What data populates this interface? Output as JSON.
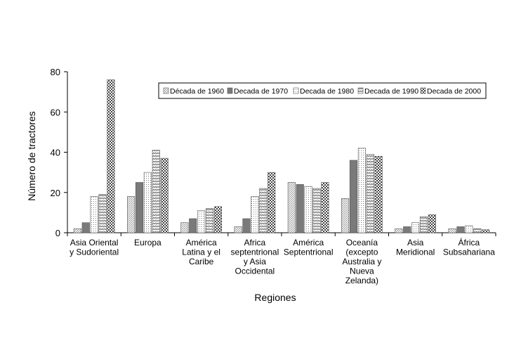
{
  "chart_data": {
    "type": "bar",
    "xlabel": "Regiones",
    "ylabel": "Número de tractores",
    "ylim": [
      0,
      80
    ],
    "yticks": [
      0,
      20,
      40,
      60,
      80
    ],
    "legend_position": "top-right",
    "categories": [
      [
        "Asia Oriental",
        "y Sudoriental"
      ],
      [
        "Europa"
      ],
      [
        "América",
        "Latina y el",
        "Caribe"
      ],
      [
        "Africa",
        "septentrional",
        "y Asia",
        "Occidental"
      ],
      [
        "América",
        "Septentrional"
      ],
      [
        "Oceanía",
        "(excepto",
        "Australia y",
        "Nueva",
        "Zelanda)"
      ],
      [
        "Asia",
        "Meridional"
      ],
      [
        "África",
        "Subsahariana"
      ]
    ],
    "series": [
      {
        "name": "Década de 1960",
        "pattern": "diag-light",
        "values": [
          2,
          18,
          5,
          3,
          25,
          17,
          2,
          2
        ]
      },
      {
        "name": "Decada de 1970",
        "pattern": "solid-gray",
        "values": [
          5,
          25,
          7,
          7,
          24,
          36,
          3,
          3
        ]
      },
      {
        "name": "Decada de 1980",
        "pattern": "dots",
        "values": [
          18,
          30,
          11,
          18,
          23,
          42,
          5,
          3.5
        ]
      },
      {
        "name": "Decada de 1990",
        "pattern": "zigzag",
        "values": [
          19,
          41,
          12,
          22,
          22,
          39,
          8,
          2
        ]
      },
      {
        "name": "Decada de 2000",
        "pattern": "checker",
        "values": [
          76,
          37,
          13,
          30,
          25,
          38,
          9,
          1.5
        ]
      }
    ]
  }
}
